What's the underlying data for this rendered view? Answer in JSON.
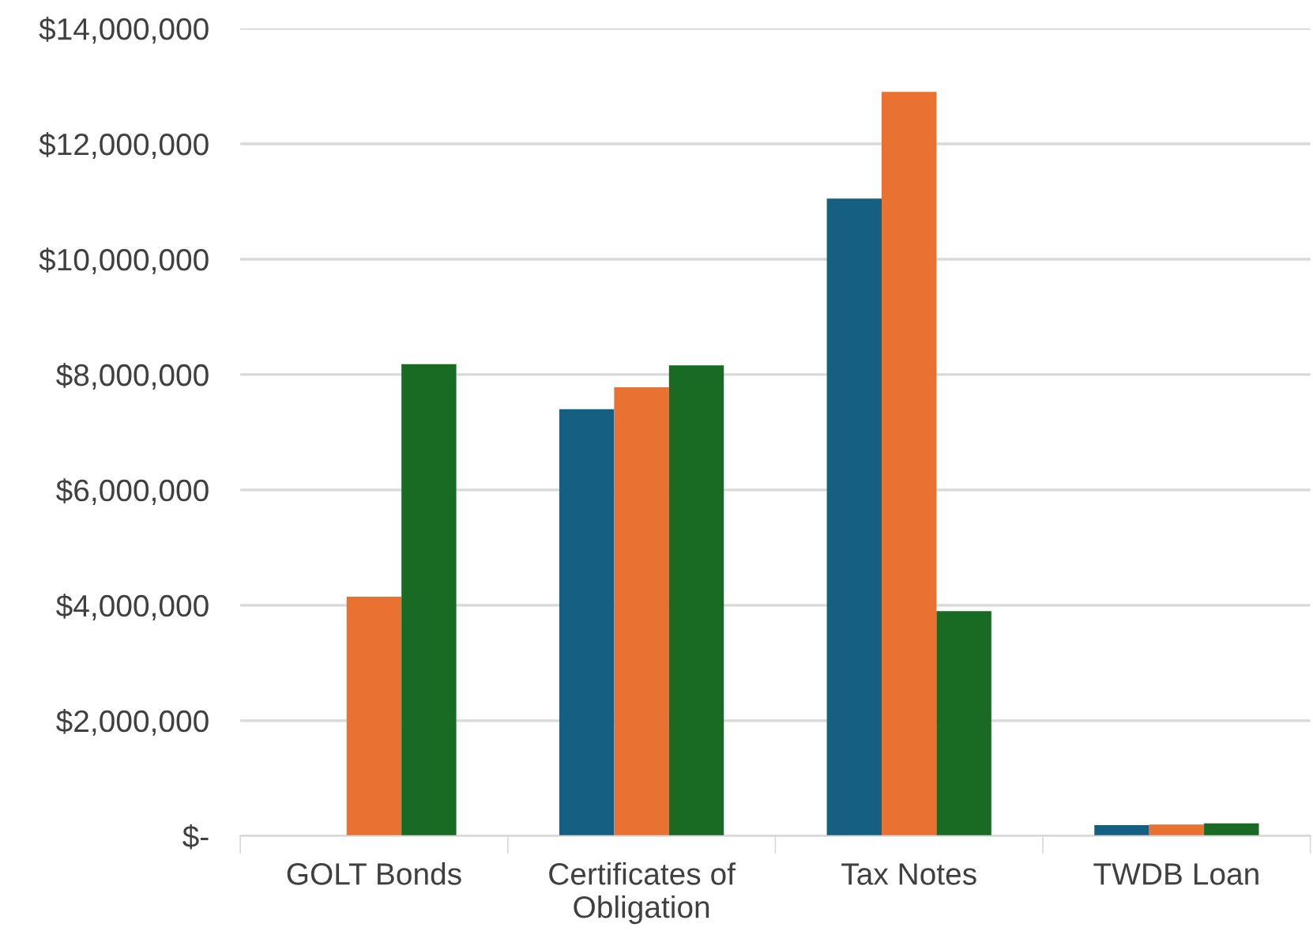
{
  "chart_data": {
    "type": "bar",
    "categories": [
      "GOLT Bonds",
      "Certificates of\nObligation",
      "Tax Notes",
      "TWDB Loan"
    ],
    "series": [
      {
        "color": "#156082",
        "values": [
          0,
          7400000,
          11050000,
          190000
        ]
      },
      {
        "color": "#e97132",
        "values": [
          4150000,
          7780000,
          12900000,
          200000
        ]
      },
      {
        "color": "#196b24",
        "values": [
          8180000,
          8160000,
          3900000,
          220000
        ]
      }
    ],
    "ylim": [
      0,
      14000000
    ],
    "yticks": [
      {
        "value": 0,
        "label": "$-"
      },
      {
        "value": 2000000,
        "label": "$2,000,000"
      },
      {
        "value": 4000000,
        "label": "$4,000,000"
      },
      {
        "value": 6000000,
        "label": "$6,000,000"
      },
      {
        "value": 8000000,
        "label": "$8,000,000"
      },
      {
        "value": 10000000,
        "label": "$10,000,000"
      },
      {
        "value": 12000000,
        "label": "$12,000,000"
      },
      {
        "value": 14000000,
        "label": "$14,000,000"
      }
    ],
    "grid": "y"
  }
}
